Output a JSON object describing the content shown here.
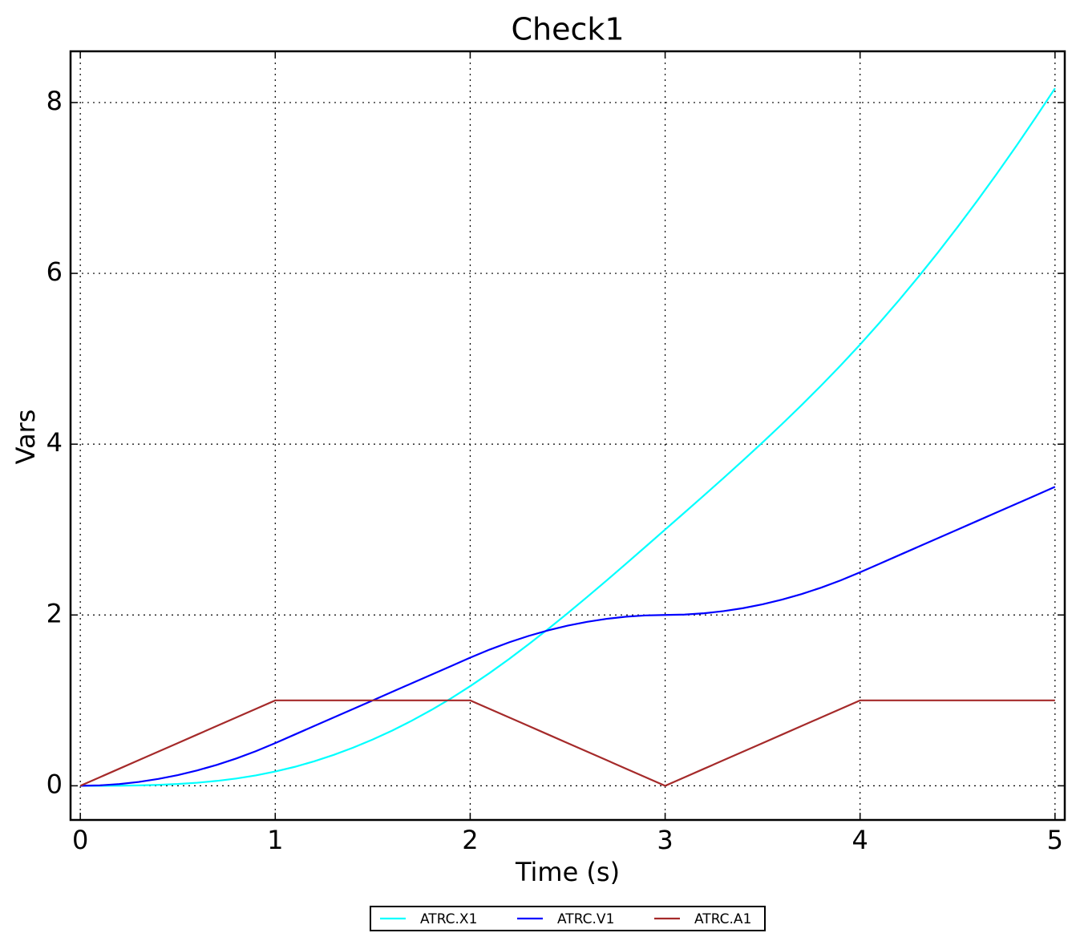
{
  "chart_data": {
    "type": "line",
    "title": "Check1",
    "x_label": "Time (s)",
    "y_label": "Vars",
    "x": [
      0,
      0.1,
      0.2,
      0.3,
      0.4,
      0.5,
      0.6,
      0.7,
      0.8,
      0.9,
      1,
      1.1,
      1.2,
      1.3,
      1.4,
      1.5,
      1.6,
      1.7,
      1.8,
      1.9,
      2,
      2.1,
      2.2,
      2.3,
      2.4,
      2.5,
      2.6,
      2.7,
      2.8,
      2.9,
      3,
      3.1,
      3.2,
      3.3,
      3.4,
      3.5,
      3.6,
      3.7,
      3.8,
      3.9,
      4,
      4.1,
      4.2,
      4.3,
      4.4,
      4.5,
      4.6,
      4.7,
      4.8,
      4.9,
      5
    ],
    "series": [
      {
        "name": "ATRC.X1",
        "color": "#00ffff",
        "values": [
          0,
          0.0002,
          0.0013,
          0.0045,
          0.0107,
          0.0208,
          0.036,
          0.0572,
          0.0853,
          0.1215,
          0.1667,
          0.2217,
          0.2867,
          0.3617,
          0.4467,
          0.5417,
          0.6467,
          0.7617,
          0.8867,
          1.0217,
          1.1667,
          1.3215,
          1.4853,
          1.6572,
          1.836,
          2.0208,
          2.2107,
          2.4045,
          2.6013,
          2.8002,
          3.0,
          3.2002,
          3.4013,
          3.6045,
          3.8107,
          4.0208,
          4.236,
          4.4572,
          4.6853,
          4.9215,
          5.1667,
          5.4217,
          5.6867,
          5.9617,
          6.2467,
          6.5417,
          6.8467,
          7.1617,
          7.4867,
          7.8217,
          8.1667
        ]
      },
      {
        "name": "ATRC.V1",
        "color": "#0000ff",
        "values": [
          0,
          0.005,
          0.02,
          0.045,
          0.08,
          0.125,
          0.18,
          0.245,
          0.32,
          0.405,
          0.5,
          0.6,
          0.7,
          0.8,
          0.9,
          1.0,
          1.1,
          1.2,
          1.3,
          1.4,
          1.5,
          1.595,
          1.68,
          1.755,
          1.82,
          1.875,
          1.92,
          1.955,
          1.98,
          1.995,
          2.0,
          2.005,
          2.02,
          2.045,
          2.08,
          2.125,
          2.18,
          2.245,
          2.32,
          2.405,
          2.5,
          2.6,
          2.7,
          2.8,
          2.9,
          3.0,
          3.1,
          3.2,
          3.3,
          3.4,
          3.5
        ]
      },
      {
        "name": "ATRC.A1",
        "color": "#a52a2a",
        "values": [
          0,
          0.1,
          0.2,
          0.3,
          0.4,
          0.5,
          0.6,
          0.7,
          0.8,
          0.9,
          1,
          1,
          1,
          1,
          1,
          1,
          1,
          1,
          1,
          1,
          1,
          0.9,
          0.8,
          0.7,
          0.6,
          0.5,
          0.4,
          0.3,
          0.2,
          0.1,
          0,
          0.1,
          0.2,
          0.3,
          0.4,
          0.5,
          0.6,
          0.7,
          0.8,
          0.9,
          1,
          1,
          1,
          1,
          1,
          1,
          1,
          1,
          1,
          1,
          1
        ]
      }
    ],
    "xlim": [
      -0.05,
      5.05
    ],
    "ylim": [
      -0.4,
      8.6
    ],
    "xticks": [
      0,
      1,
      2,
      3,
      4,
      5
    ],
    "yticks": [
      0,
      2,
      4,
      6,
      8
    ],
    "grid": true,
    "legend": "bottom"
  }
}
